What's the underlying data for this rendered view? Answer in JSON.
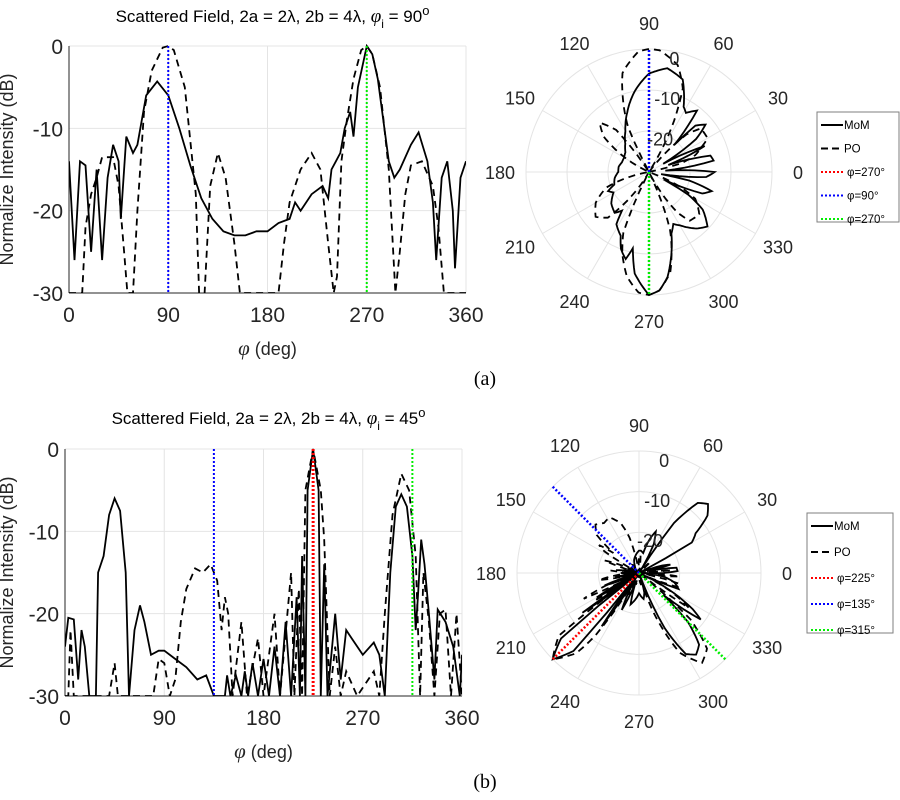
{
  "figure": {
    "caption_a": "(a)",
    "caption_b": "(b)"
  },
  "chart_data": [
    {
      "type": "line",
      "title": {
        "main": "Scattered Field, 2a = 2λ, 2b = 4λ, ",
        "phi": "φ",
        "sub": "i",
        "eq": " = 90",
        "sup": "o"
      },
      "xlabel": {
        "sym": "φ",
        "text": " (deg)"
      },
      "ylabel": "Normalize Intensity (dB)",
      "xlim": [
        0,
        360
      ],
      "ylim": [
        -30,
        0
      ],
      "xticks": [
        "0",
        "90",
        "180",
        "270",
        "360"
      ],
      "yticks": [
        "0",
        "-10",
        "-20",
        "-30"
      ],
      "grid": true,
      "series": [
        {
          "name": "MoM",
          "style": "solid",
          "color": "#000000",
          "x": [
            0,
            5,
            10,
            15,
            20,
            25,
            30,
            35,
            40,
            45,
            47,
            52,
            58,
            62,
            70,
            80,
            90,
            100,
            110,
            120,
            130,
            140,
            150,
            160,
            170,
            180,
            190,
            200,
            205,
            210,
            220,
            230,
            235,
            238,
            242,
            246,
            250,
            255,
            258,
            262,
            270,
            275,
            280,
            285,
            290,
            295,
            300,
            310,
            317,
            325,
            330,
            333,
            338,
            343,
            348,
            350,
            355,
            360
          ],
          "y": [
            -14,
            -26,
            -14,
            -14.5,
            -25,
            -15,
            -26,
            -16,
            -12,
            -14,
            -21,
            -11,
            -13,
            -12,
            -6,
            -4.3,
            -6,
            -10,
            -14.5,
            -18.5,
            -21,
            -22.5,
            -23,
            -23,
            -22.5,
            -22.5,
            -21.5,
            -21,
            -19,
            -20,
            -18,
            -17,
            -18.5,
            -15,
            -14,
            -13,
            -10,
            -8,
            -11,
            -5,
            0,
            -1,
            -4,
            -9,
            -14,
            -16,
            -15,
            -12,
            -10.5,
            -14,
            -19,
            -26,
            -16,
            -14,
            -20,
            -27,
            -16,
            -14
          ]
        },
        {
          "name": "PO",
          "style": "dashed",
          "color": "#000000",
          "x": [
            0,
            12,
            15,
            20,
            25,
            30,
            40,
            45,
            50,
            53,
            58,
            62,
            68,
            75,
            85,
            90,
            95,
            105,
            115,
            118,
            123,
            128,
            135,
            142,
            150,
            155,
            190,
            195,
            200,
            210,
            220,
            228,
            235,
            240,
            243,
            247,
            252,
            258,
            265,
            270,
            275,
            282,
            290,
            296,
            300,
            305,
            310,
            320,
            330,
            335,
            340,
            360
          ],
          "y": [
            -30,
            -30,
            -22,
            -18,
            -16,
            -13.5,
            -13.5,
            -17,
            -25,
            -30,
            -30,
            -20,
            -8,
            -3,
            -0.2,
            0,
            -0.5,
            -5,
            -18,
            -30,
            -30,
            -17,
            -13,
            -16,
            -24,
            -30,
            -30,
            -24,
            -19,
            -15,
            -13,
            -15,
            -24,
            -30,
            -28,
            -14,
            -9,
            -4,
            -0.5,
            0,
            -1,
            -5,
            -15,
            -30,
            -25,
            -18,
            -14.5,
            -14,
            -17,
            -22,
            -30,
            -30
          ]
        }
      ],
      "markers": [
        {
          "label": "φ=270°",
          "phi": 270,
          "color": "#ff0000"
        },
        {
          "label": "φ=90°",
          "phi": 90,
          "color": "#0000ff"
        },
        {
          "label": "φ=270°",
          "phi": 270,
          "color": "#00ee00"
        }
      ]
    },
    {
      "type": "polar",
      "rlim": [
        -30,
        0
      ],
      "angle_ticks": [
        "0",
        "30",
        "60",
        "90",
        "120",
        "150",
        "180",
        "210",
        "240",
        "270",
        "300",
        "330"
      ],
      "r_ticks": [
        "0",
        "-10",
        "-20"
      ],
      "legend": {
        "placement": "right",
        "entries": [
          "MoM",
          "PO",
          "φ=270°",
          "φ=90°",
          "φ=270°"
        ]
      }
    },
    {
      "type": "line",
      "title": {
        "main": "Scattered Field, 2a = 2λ, 2b = 4λ, ",
        "phi": "φ",
        "sub": "i",
        "eq": " = 45",
        "sup": "o"
      },
      "xlabel": {
        "sym": "φ",
        "text": " (deg)"
      },
      "ylabel": "Normalize Intensity (dB)",
      "xlim": [
        0,
        360
      ],
      "ylim": [
        -30,
        0
      ],
      "xticks": [
        "0",
        "90",
        "180",
        "270",
        "360"
      ],
      "yticks": [
        "0",
        "-10",
        "-20",
        "-30"
      ],
      "grid": true,
      "series": [
        {
          "name": "MoM",
          "style": "solid",
          "color": "#000000",
          "x": [
            0,
            3,
            8,
            12,
            15,
            18,
            22,
            28,
            30,
            35,
            40,
            45,
            50,
            55,
            58,
            63,
            68,
            72,
            78,
            85,
            90,
            100,
            110,
            120,
            128,
            135,
            145,
            147,
            150,
            155,
            160,
            163,
            166,
            170,
            175,
            180,
            185,
            190,
            195,
            200,
            205,
            210,
            213,
            215,
            218,
            220,
            225,
            230,
            232,
            235,
            238,
            245,
            250,
            255,
            260,
            270,
            280,
            285,
            290,
            295,
            300,
            305,
            310,
            315,
            318,
            320,
            323,
            326,
            330,
            335,
            338,
            345,
            352,
            358,
            360
          ],
          "y": [
            -24,
            -20.5,
            -20.7,
            -28,
            -22,
            -24,
            -30,
            -30,
            -15,
            -13,
            -8,
            -6,
            -7.5,
            -15,
            -30,
            -22,
            -19,
            -21,
            -25,
            -24.5,
            -24.5,
            -25.5,
            -26.5,
            -28,
            -27.5,
            -30,
            -30,
            -27.5,
            -30,
            -27.5,
            -30,
            -27,
            -30,
            -26,
            -30,
            -25.5,
            -30,
            -24,
            -30,
            -21,
            -30,
            -18,
            -30,
            -13,
            -30,
            -5,
            0,
            -5,
            -30,
            -14,
            -30,
            -20,
            -28,
            -22,
            -23,
            -25,
            -23.5,
            -25,
            -30,
            -15,
            -7,
            -5.5,
            -7,
            -13,
            -22,
            -18,
            -11,
            -14,
            -20,
            -28,
            -19.5,
            -21,
            -24,
            -30,
            -25
          ]
        },
        {
          "name": "PO",
          "style": "dashed",
          "color": "#000000",
          "x": [
            0,
            3,
            5,
            8,
            40,
            45,
            48,
            80,
            85,
            90,
            95,
            100,
            105,
            110,
            118,
            125,
            132,
            138,
            142,
            145,
            148,
            152,
            160,
            165,
            175,
            180,
            190,
            195,
            205,
            208,
            212,
            215,
            218,
            225,
            232,
            235,
            240,
            245,
            250,
            255,
            265,
            280,
            285,
            290,
            297,
            305,
            312,
            318,
            322,
            325,
            330,
            335,
            340,
            345,
            350,
            355,
            360
          ],
          "y": [
            -30,
            -30,
            -22,
            -30,
            -30,
            -26,
            -30,
            -30,
            -25.5,
            -26,
            -30,
            -28,
            -21,
            -17,
            -14.5,
            -15,
            -14,
            -16,
            -22,
            -18,
            -20,
            -30,
            -21,
            -30,
            -23,
            -30,
            -20,
            -30,
            -15,
            -30,
            -17,
            -30,
            -5,
            0,
            -5,
            -11,
            -30,
            -24,
            -30,
            -27,
            -30,
            -27,
            -30,
            -20,
            -8,
            -3,
            -5,
            -13,
            -30,
            -15,
            -21,
            -30,
            -20,
            -19.5,
            -30,
            -20,
            -30
          ]
        }
      ],
      "markers": [
        {
          "label": "φ=225°",
          "phi": 225,
          "color": "#ff0000"
        },
        {
          "label": "φ=135°",
          "phi": 135,
          "color": "#0000ff"
        },
        {
          "label": "φ=315°",
          "phi": 315,
          "color": "#00ee00"
        }
      ]
    },
    {
      "type": "polar",
      "rlim": [
        -30,
        0
      ],
      "angle_ticks": [
        "0",
        "30",
        "60",
        "90",
        "120",
        "150",
        "180",
        "210",
        "240",
        "270",
        "300",
        "330"
      ],
      "r_ticks": [
        "0",
        "-10",
        "-20"
      ],
      "legend": {
        "placement": "right",
        "entries": [
          "MoM",
          "PO",
          "φ=225°",
          "φ=135°",
          "φ=315°"
        ]
      }
    }
  ]
}
